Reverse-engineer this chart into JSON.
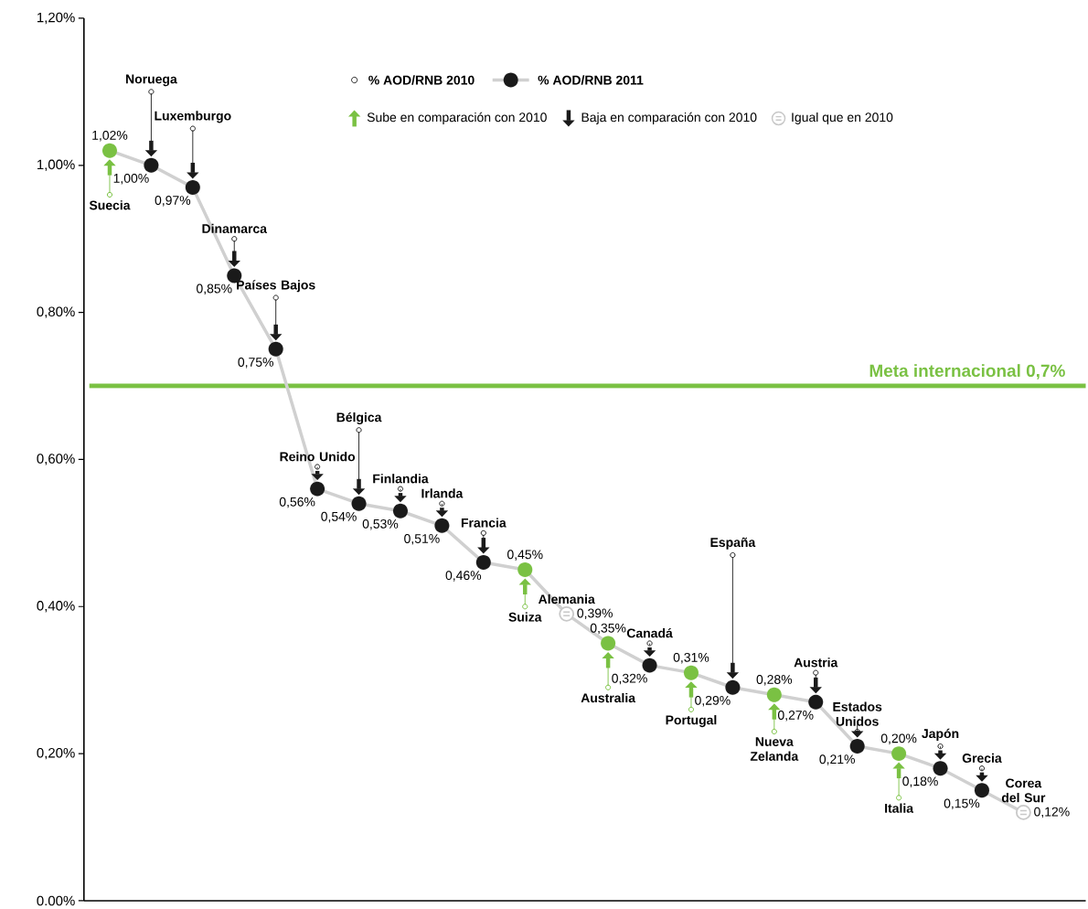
{
  "chart_data": {
    "type": "line",
    "categories": [
      "Suecia",
      "Noruega",
      "Luxemburgo",
      "Dinamarca",
      "Países Bajos",
      "Reino Unido",
      "Bélgica",
      "Finlandia",
      "Irlanda",
      "Francia",
      "Suiza",
      "Alemania",
      "Australia",
      "Canadá",
      "Portugal",
      "España",
      "Nueva Zelanda",
      "Austria",
      "Estados Unidos",
      "Italia",
      "Japón",
      "Grecia",
      "Corea del Sur"
    ],
    "ylim": [
      0,
      1.2
    ],
    "yticks": [
      {
        "value": 0,
        "label": "0.00%"
      },
      {
        "value": 0.2,
        "label": "0,20%"
      },
      {
        "value": 0.4,
        "label": "0,40%"
      },
      {
        "value": 0.6,
        "label": "0,60%"
      },
      {
        "value": 0.8,
        "label": "0,80%"
      },
      {
        "value": 1.0,
        "label": "1,00%"
      },
      {
        "value": 1.2,
        "label": "1,20%"
      }
    ],
    "grid": false,
    "legend": "top",
    "marker": "circle",
    "line_style": "solid",
    "series": [
      {
        "name": "% AOD/RNB 2010",
        "type": "scatter",
        "color": "#ffffff",
        "values": [
          0.96,
          1.1,
          1.05,
          0.9,
          0.82,
          0.59,
          0.64,
          0.56,
          0.54,
          0.5,
          0.4,
          null,
          0.29,
          0.35,
          0.26,
          0.47,
          0.23,
          0.31,
          0.23,
          0.14,
          0.21,
          0.18,
          null
        ]
      },
      {
        "name": "% AOD/RNB 2011",
        "type": "line",
        "color": "#d0d0d0",
        "colors": [
          "#7ac143",
          "#1a1a1a",
          "#1a1a1a",
          "#1a1a1a",
          "#1a1a1a",
          "#1a1a1a",
          "#1a1a1a",
          "#1a1a1a",
          "#1a1a1a",
          "#1a1a1a",
          "#7ac143",
          "#c8c8c8",
          "#7ac143",
          "#1a1a1a",
          "#7ac143",
          "#1a1a1a",
          "#7ac143",
          "#1a1a1a",
          "#1a1a1a",
          "#7ac143",
          "#1a1a1a",
          "#1a1a1a",
          "#c8c8c8"
        ],
        "values": [
          1.02,
          1.0,
          0.97,
          0.85,
          0.75,
          0.56,
          0.54,
          0.53,
          0.51,
          0.46,
          0.45,
          0.39,
          0.35,
          0.32,
          0.31,
          0.29,
          0.28,
          0.27,
          0.21,
          0.2,
          0.18,
          0.15,
          0.12
        ],
        "value_labels": [
          "1,02%",
          "1,00%",
          "0,97%",
          "0,85%",
          "0,75%",
          "0,56%",
          "0,54%",
          "0,53%",
          "0,51%",
          "0,46%",
          "0,45%",
          "0,39%",
          "0,35%",
          "0,32%",
          "0,31%",
          "0,29%",
          "0,28%",
          "0,27%",
          "0,21%",
          "0,20%",
          "0,18%",
          "0,15%",
          "0,12%"
        ]
      }
    ],
    "ref_lines": [
      {
        "axis": "y",
        "value": 0.7,
        "label": "Meta internacional 0,7%",
        "color": "#7ac143"
      }
    ],
    "annotations": [
      "Sube en comparación con 2010",
      "Baja en comparación con 2010",
      "Igual que en 2010"
    ]
  }
}
